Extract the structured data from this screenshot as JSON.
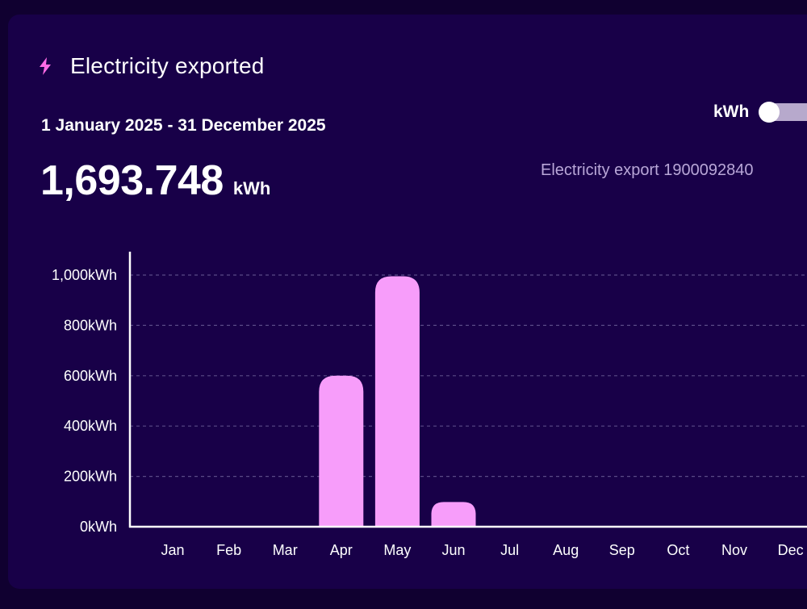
{
  "header": {
    "title": "Electricity exported",
    "icon": "lightning-bolt-icon",
    "accent_color": "#ff6be6"
  },
  "summary": {
    "date_range": "1 January 2025 - 31 December 2025",
    "total_value": "1,693.748",
    "total_unit": "kWh"
  },
  "unit_toggle": {
    "label": "kWh"
  },
  "meter": {
    "label": "Electricity export 1900092840"
  },
  "chart_data": {
    "type": "bar",
    "categories": [
      "Jan",
      "Feb",
      "Mar",
      "Apr",
      "May",
      "Jun",
      "Jul",
      "Aug",
      "Sep",
      "Oct",
      "Nov",
      "Dec"
    ],
    "values": [
      0,
      0,
      0,
      600,
      995,
      98,
      0,
      0,
      0,
      0,
      0,
      0
    ],
    "ylim": [
      0,
      1000
    ],
    "yticks": [
      0,
      200,
      400,
      600,
      800,
      1000
    ],
    "ytick_labels": [
      "0kWh",
      "200kWh",
      "400kWh",
      "600kWh",
      "800kWh",
      "1,000kWh"
    ],
    "grid": true,
    "bar_color": "#f79dfa",
    "grid_color": "#5a4a86",
    "axis_color": "#ffffff"
  }
}
